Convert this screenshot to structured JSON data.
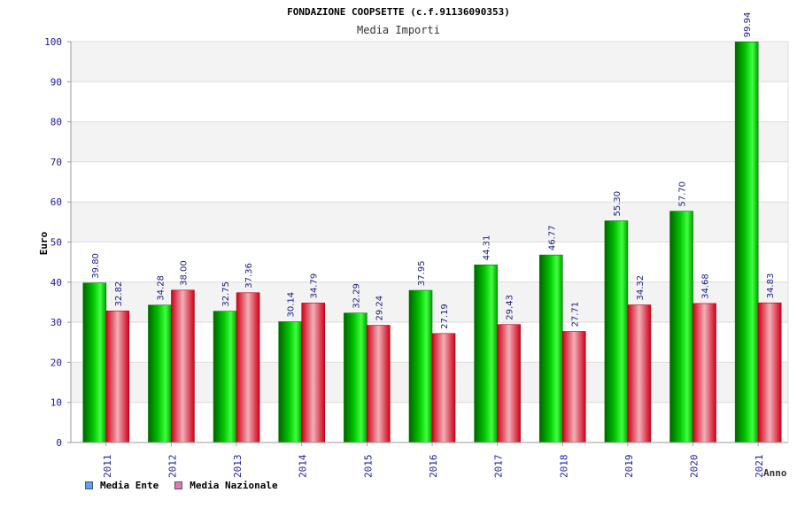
{
  "chart_data": {
    "type": "bar",
    "title": "FONDAZIONE COOPSETTE (c.f.91136090353)",
    "subtitle": "Media Importi",
    "xlabel": "Anno",
    "ylabel": "Euro",
    "ylim": [
      0,
      100
    ],
    "yticks": [
      0,
      10,
      20,
      30,
      40,
      50,
      60,
      70,
      80,
      90,
      100
    ],
    "categories": [
      "2011",
      "2012",
      "2013",
      "2014",
      "2015",
      "2016",
      "2017",
      "2018",
      "2019",
      "2020",
      "2021"
    ],
    "series": [
      {
        "name": "Media Ente",
        "color": "#00b400",
        "legend_color": "#5aa0ff",
        "values": [
          39.8,
          34.28,
          32.75,
          30.14,
          32.29,
          37.95,
          44.31,
          46.77,
          55.3,
          57.7,
          99.94
        ],
        "labels": [
          "39.80",
          "34.28",
          "32.75",
          "30.14",
          "32.29",
          "37.95",
          "44.31",
          "46.77",
          "55.30",
          "57.70",
          "99.94"
        ]
      },
      {
        "name": "Media Nazionale",
        "color": "#e8001c",
        "legend_color": "#e07ab0",
        "values": [
          32.82,
          38.0,
          37.36,
          34.79,
          29.24,
          27.19,
          29.43,
          27.71,
          34.32,
          34.68,
          34.83
        ],
        "labels": [
          "32.82",
          "38.00",
          "37.36",
          "34.79",
          "29.24",
          "27.19",
          "29.43",
          "27.71",
          "34.32",
          "34.68",
          "34.83"
        ]
      }
    ],
    "grid": true,
    "legend_position": "bottom-left"
  }
}
